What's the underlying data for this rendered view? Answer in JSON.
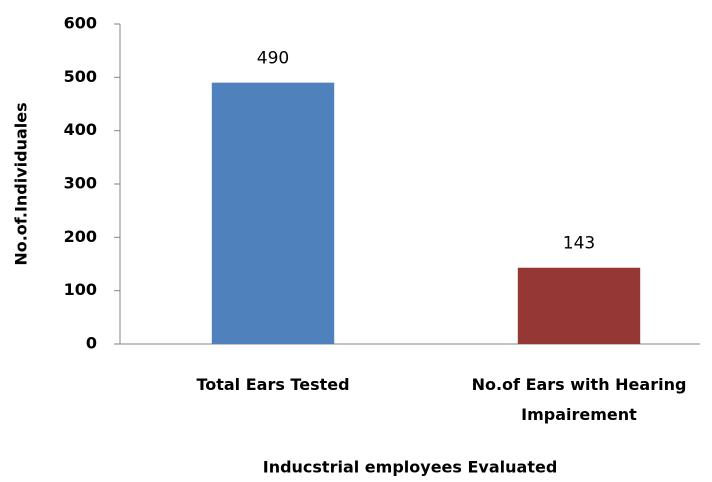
{
  "chart_data": {
    "type": "bar",
    "categories": [
      "Total Ears Tested",
      "No.of Ears with Hearing Impairement"
    ],
    "values": [
      490,
      143
    ],
    "colors": [
      "#4f81bd",
      "#953735"
    ],
    "xlabel": "Inducstrial employees Evaluated",
    "ylabel": "No.of.Individuales",
    "ylim": [
      0,
      600
    ],
    "yticks": [
      0,
      100,
      200,
      300,
      400,
      500,
      600
    ],
    "grid": false
  }
}
